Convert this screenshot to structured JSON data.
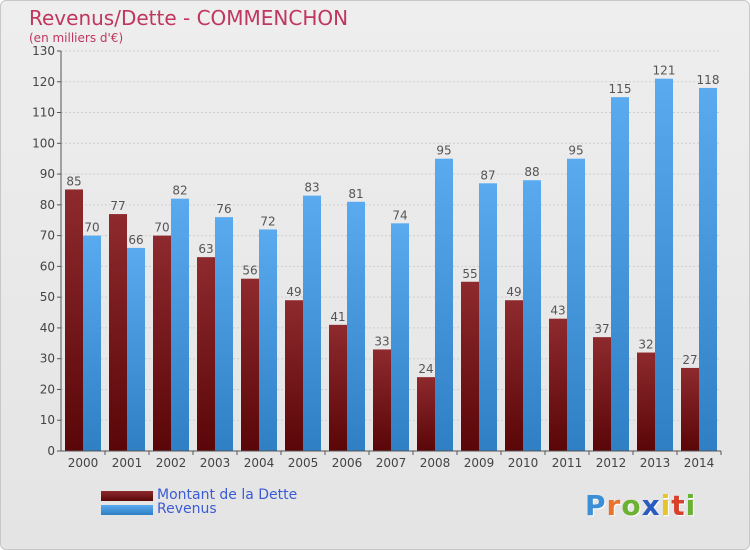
{
  "chart_data": {
    "type": "bar",
    "title": "Revenus/Dette - COMMENCHON",
    "subtitle": "(en milliers d'€)",
    "categories": [
      "2000",
      "2001",
      "2002",
      "2003",
      "2004",
      "2005",
      "2006",
      "2007",
      "2008",
      "2009",
      "2010",
      "2011",
      "2012",
      "2013",
      "2014"
    ],
    "series": [
      {
        "name": "Montant de la Dette",
        "color": "#7a1418",
        "values": [
          85,
          77,
          70,
          63,
          56,
          49,
          41,
          33,
          24,
          55,
          49,
          43,
          37,
          32,
          27
        ]
      },
      {
        "name": "Revenus",
        "color": "#4a9be0",
        "values": [
          70,
          66,
          82,
          76,
          72,
          83,
          81,
          74,
          95,
          87,
          88,
          95,
          115,
          121,
          118
        ]
      }
    ],
    "ylim": [
      0,
      130
    ],
    "ytick_step": 10,
    "grid": true,
    "legend_placement": "bottom-left"
  },
  "logo": {
    "letters": [
      "P",
      "r",
      "o",
      "x",
      "i",
      "t",
      "i"
    ],
    "colors": [
      "#3b8fd6",
      "#e8732c",
      "#6bb232",
      "#2a5bbf",
      "#e8c42c",
      "#d8402c",
      "#6bb232"
    ]
  }
}
